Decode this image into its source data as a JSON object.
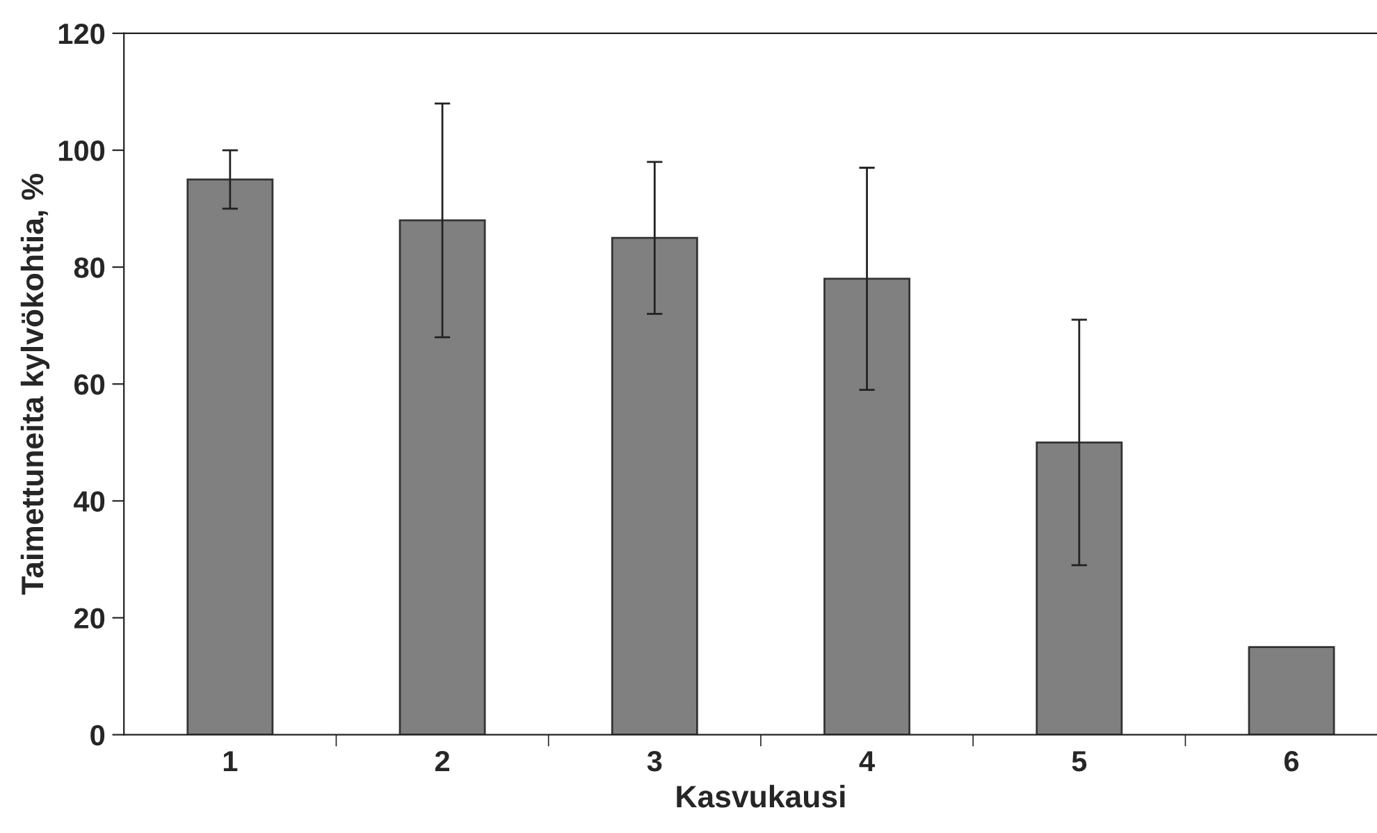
{
  "chart_data": {
    "type": "bar",
    "xlabel": "Kasvukausi",
    "ylabel": "Taimettuneita kylvökohtia, %",
    "categories": [
      "1",
      "2",
      "3",
      "4",
      "5",
      "6"
    ],
    "values": [
      95,
      88,
      85,
      78,
      50,
      15
    ],
    "errors": [
      5,
      20,
      13,
      19,
      21,
      null
    ],
    "color": "#808080",
    "ylim": [
      0,
      120
    ],
    "yticks": [
      0,
      20,
      40,
      60,
      80,
      100,
      120
    ],
    "grid": false,
    "legend": false
  }
}
